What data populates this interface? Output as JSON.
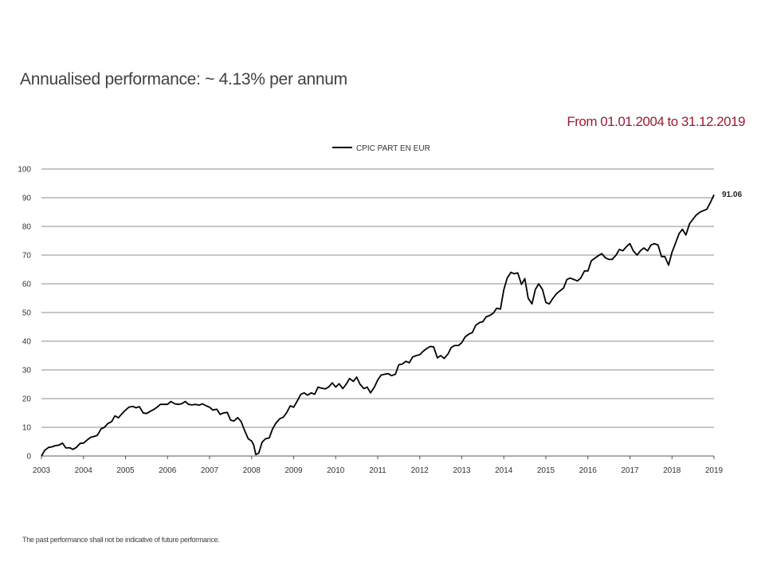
{
  "header": {
    "title": "Annualised performance: ~ 4.13% per annum",
    "period": "From 01.01.2004 to 31.12.2019"
  },
  "footer": {
    "disclaimer": "The past performance shall not be indicative of future performance."
  },
  "colors": {
    "period_text": "#9b1b30",
    "series_line": "#000000",
    "grid": "#8c8c8c"
  },
  "chart_data": {
    "type": "line",
    "xlim": [
      2003,
      2019
    ],
    "ylim": [
      0,
      100
    ],
    "x_ticks": [
      "2003",
      "2004",
      "2005",
      "2006",
      "2007",
      "2008",
      "2009",
      "2010",
      "2011",
      "2012",
      "2013",
      "2014",
      "2015",
      "2016",
      "2017",
      "2018",
      "2019"
    ],
    "y_ticks": [
      "0",
      "10",
      "20",
      "30",
      "40",
      "50",
      "60",
      "70",
      "80",
      "90",
      "100"
    ],
    "grid": "horizontal",
    "legend_position": "top-center",
    "end_label": "91.06",
    "series": [
      {
        "name": "CPIC PART EN EUR",
        "points": [
          [
            2003.0,
            0
          ],
          [
            2003.08,
            2
          ],
          [
            2003.17,
            3
          ],
          [
            2003.25,
            3.2
          ],
          [
            2003.33,
            3.6
          ],
          [
            2003.42,
            3.8
          ],
          [
            2003.5,
            4.5
          ],
          [
            2003.58,
            2.8
          ],
          [
            2003.67,
            2.9
          ],
          [
            2003.75,
            2.3
          ],
          [
            2003.83,
            3.0
          ],
          [
            2003.92,
            4.4
          ],
          [
            2004.0,
            4.5
          ],
          [
            2004.08,
            5.5
          ],
          [
            2004.17,
            6.5
          ],
          [
            2004.25,
            6.8
          ],
          [
            2004.33,
            7.2
          ],
          [
            2004.42,
            9.5
          ],
          [
            2004.5,
            10.0
          ],
          [
            2004.58,
            11.3
          ],
          [
            2004.67,
            12.0
          ],
          [
            2004.75,
            14.0
          ],
          [
            2004.83,
            13.3
          ],
          [
            2004.92,
            14.8
          ],
          [
            2005.0,
            16.0
          ],
          [
            2005.08,
            17.0
          ],
          [
            2005.17,
            17.3
          ],
          [
            2005.25,
            16.8
          ],
          [
            2005.33,
            17.2
          ],
          [
            2005.42,
            15.0
          ],
          [
            2005.5,
            14.8
          ],
          [
            2005.58,
            15.5
          ],
          [
            2005.67,
            16.2
          ],
          [
            2005.75,
            17.0
          ],
          [
            2005.83,
            18.0
          ],
          [
            2005.92,
            18.0
          ],
          [
            2006.0,
            18.0
          ],
          [
            2006.08,
            19.0
          ],
          [
            2006.17,
            18.2
          ],
          [
            2006.25,
            18.0
          ],
          [
            2006.33,
            18.2
          ],
          [
            2006.42,
            19.0
          ],
          [
            2006.5,
            18.0
          ],
          [
            2006.58,
            17.8
          ],
          [
            2006.67,
            18.0
          ],
          [
            2006.75,
            17.7
          ],
          [
            2006.83,
            18.2
          ],
          [
            2006.92,
            17.5
          ],
          [
            2007.0,
            17.0
          ],
          [
            2007.08,
            16.0
          ],
          [
            2007.17,
            16.3
          ],
          [
            2007.25,
            14.5
          ],
          [
            2007.33,
            15.0
          ],
          [
            2007.42,
            15.2
          ],
          [
            2007.5,
            12.5
          ],
          [
            2007.58,
            12.2
          ],
          [
            2007.67,
            13.4
          ],
          [
            2007.75,
            12.0
          ],
          [
            2007.83,
            9.0
          ],
          [
            2007.92,
            6.0
          ],
          [
            2008.0,
            5.2
          ],
          [
            2008.05,
            3.8
          ],
          [
            2008.1,
            0.5
          ],
          [
            2008.17,
            1.0
          ],
          [
            2008.25,
            4.8
          ],
          [
            2008.33,
            6.0
          ],
          [
            2008.42,
            6.3
          ],
          [
            2008.5,
            9.5
          ],
          [
            2008.58,
            11.5
          ],
          [
            2008.67,
            13.0
          ],
          [
            2008.75,
            13.5
          ],
          [
            2008.83,
            15.0
          ],
          [
            2008.92,
            17.5
          ],
          [
            2009.0,
            17.0
          ],
          [
            2009.08,
            19.0
          ],
          [
            2009.17,
            21.5
          ],
          [
            2009.25,
            22.0
          ],
          [
            2009.33,
            21.2
          ],
          [
            2009.42,
            22.0
          ],
          [
            2009.5,
            21.5
          ],
          [
            2009.58,
            24.0
          ],
          [
            2009.67,
            23.6
          ],
          [
            2009.75,
            23.4
          ],
          [
            2009.83,
            24.0
          ],
          [
            2009.92,
            25.5
          ],
          [
            2010.0,
            24.0
          ],
          [
            2010.08,
            25.2
          ],
          [
            2010.17,
            23.5
          ],
          [
            2010.25,
            25.0
          ],
          [
            2010.33,
            27.0
          ],
          [
            2010.42,
            26.0
          ],
          [
            2010.5,
            27.5
          ],
          [
            2010.58,
            25.0
          ],
          [
            2010.67,
            23.5
          ],
          [
            2010.75,
            24.0
          ],
          [
            2010.83,
            22.0
          ],
          [
            2010.92,
            24.0
          ],
          [
            2011.0,
            26.5
          ],
          [
            2011.08,
            28.2
          ],
          [
            2011.17,
            28.5
          ],
          [
            2011.25,
            28.7
          ],
          [
            2011.33,
            28.0
          ],
          [
            2011.42,
            28.5
          ],
          [
            2011.5,
            31.8
          ],
          [
            2011.58,
            32.0
          ],
          [
            2011.67,
            33.0
          ],
          [
            2011.75,
            32.5
          ],
          [
            2011.83,
            34.5
          ],
          [
            2011.92,
            35.0
          ],
          [
            2012.0,
            35.3
          ],
          [
            2012.08,
            36.5
          ],
          [
            2012.17,
            37.5
          ],
          [
            2012.25,
            38.2
          ],
          [
            2012.33,
            38.0
          ],
          [
            2012.42,
            34.2
          ],
          [
            2012.5,
            35.0
          ],
          [
            2012.58,
            34.0
          ],
          [
            2012.67,
            35.5
          ],
          [
            2012.75,
            37.8
          ],
          [
            2012.83,
            38.5
          ],
          [
            2012.92,
            38.5
          ],
          [
            2013.0,
            39.5
          ],
          [
            2013.08,
            41.5
          ],
          [
            2013.17,
            42.5
          ],
          [
            2013.25,
            43.0
          ],
          [
            2013.33,
            45.5
          ],
          [
            2013.42,
            46.5
          ],
          [
            2013.5,
            46.8
          ],
          [
            2013.58,
            48.5
          ],
          [
            2013.67,
            49.0
          ],
          [
            2013.75,
            49.8
          ],
          [
            2013.83,
            51.5
          ],
          [
            2013.92,
            51.2
          ],
          [
            2014.0,
            58.0
          ],
          [
            2014.08,
            62.0
          ],
          [
            2014.17,
            64.0
          ],
          [
            2014.25,
            63.5
          ],
          [
            2014.33,
            63.8
          ],
          [
            2014.42,
            59.8
          ],
          [
            2014.5,
            61.8
          ],
          [
            2014.58,
            55.0
          ],
          [
            2014.67,
            53.0
          ],
          [
            2014.75,
            58.0
          ],
          [
            2014.83,
            60.0
          ],
          [
            2014.92,
            58.0
          ],
          [
            2015.0,
            53.5
          ],
          [
            2015.08,
            53.0
          ],
          [
            2015.17,
            55.0
          ],
          [
            2015.25,
            56.5
          ],
          [
            2015.33,
            57.5
          ],
          [
            2015.42,
            58.5
          ],
          [
            2015.5,
            61.5
          ],
          [
            2015.58,
            62.0
          ],
          [
            2015.67,
            61.5
          ],
          [
            2015.75,
            61.0
          ],
          [
            2015.83,
            62.0
          ],
          [
            2015.92,
            64.5
          ],
          [
            2016.0,
            64.5
          ],
          [
            2016.08,
            68.0
          ],
          [
            2016.17,
            69.0
          ],
          [
            2016.25,
            69.8
          ],
          [
            2016.33,
            70.5
          ],
          [
            2016.42,
            69.0
          ],
          [
            2016.5,
            68.5
          ],
          [
            2016.58,
            68.5
          ],
          [
            2016.67,
            70.0
          ],
          [
            2016.75,
            72.0
          ],
          [
            2016.83,
            71.5
          ],
          [
            2016.92,
            73.0
          ],
          [
            2017.0,
            74.0
          ],
          [
            2017.08,
            71.5
          ],
          [
            2017.17,
            70.0
          ],
          [
            2017.25,
            71.5
          ],
          [
            2017.33,
            72.5
          ],
          [
            2017.42,
            71.5
          ],
          [
            2017.5,
            73.5
          ],
          [
            2017.58,
            74.0
          ],
          [
            2017.67,
            73.5
          ],
          [
            2017.75,
            69.5
          ],
          [
            2017.83,
            69.5
          ],
          [
            2017.92,
            66.5
          ],
          [
            2018.0,
            71.0
          ],
          [
            2018.08,
            74.0
          ],
          [
            2018.17,
            77.5
          ],
          [
            2018.25,
            79.0
          ],
          [
            2018.33,
            77.0
          ],
          [
            2018.42,
            81.0
          ],
          [
            2018.5,
            82.5
          ],
          [
            2018.58,
            84.0
          ],
          [
            2018.67,
            85.0
          ],
          [
            2018.75,
            85.5
          ],
          [
            2018.83,
            86.0
          ],
          [
            2018.92,
            88.5
          ],
          [
            2019.0,
            91.06
          ]
        ]
      }
    ]
  }
}
